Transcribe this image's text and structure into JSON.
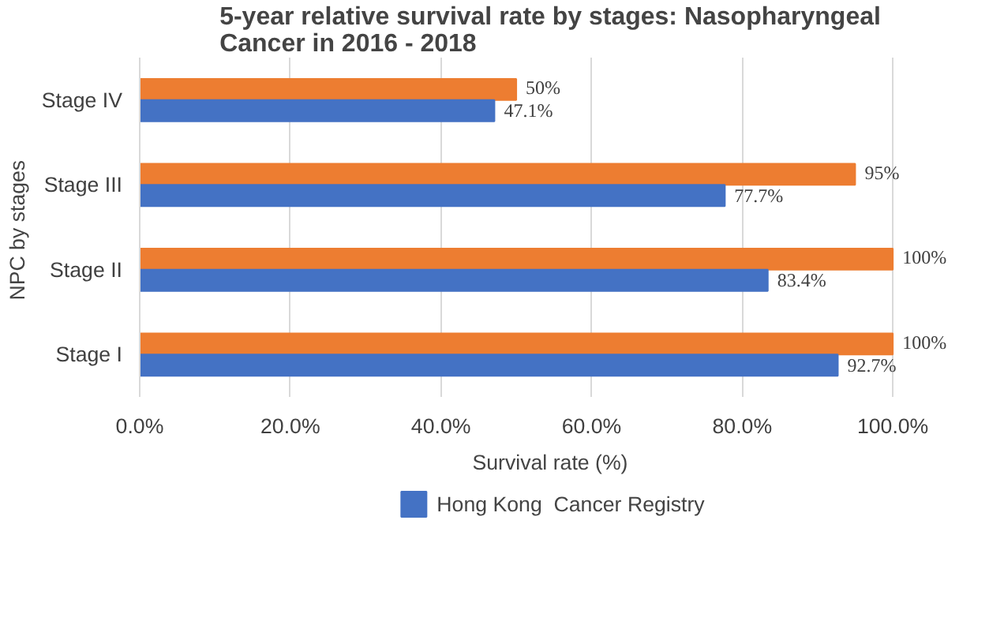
{
  "chart_data": {
    "type": "bar",
    "orientation": "horizontal",
    "title": "5-year relative survival rate by stages: Nasopharyngeal Cancer in 2016 - 2018",
    "xlabel": "Survival rate (%)",
    "ylabel": "NPC  by stages",
    "categories": [
      "Stage IV",
      "Stage III",
      "Stage II",
      "Stage I"
    ],
    "series": [
      {
        "color": "#ed7d31",
        "values": [
          50,
          95,
          100,
          100
        ],
        "value_labels": [
          "50%",
          "95%",
          "100%",
          "100%"
        ]
      },
      {
        "name": "Hong Kong  Cancer Registry",
        "color": "#4472c4",
        "values": [
          47.1,
          77.7,
          83.4,
          92.7
        ],
        "value_labels": [
          "47.1%",
          "77.7%",
          "83.4%",
          "92.7%"
        ]
      }
    ],
    "xlim": [
      0,
      100
    ],
    "xticks": [
      {
        "value": 0,
        "label": "0.0%"
      },
      {
        "value": 20,
        "label": "20.0%"
      },
      {
        "value": 40,
        "label": "40.0%"
      },
      {
        "value": 60,
        "label": "60.0%"
      },
      {
        "value": 80,
        "label": "80.0%"
      },
      {
        "value": 100,
        "label": "100.0%"
      }
    ],
    "grid": "x",
    "legend": "bottom"
  }
}
